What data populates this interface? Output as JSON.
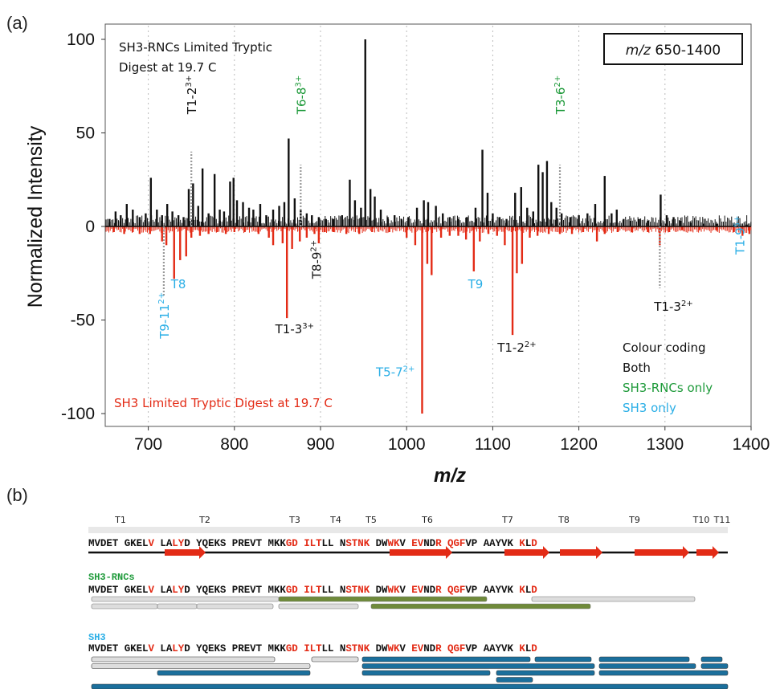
{
  "panel_a_label": "(a)",
  "panel_b_label": "(b)",
  "colors": {
    "top": "#111111",
    "bottom": "#e32b16",
    "green": "#1e9a3a",
    "blue": "#29aee6",
    "grid": "#bbbbbb",
    "bar_green": "#6f8a3a",
    "bar_blue": "#1b6f9c",
    "bar_grey": "#dddddd"
  },
  "chart_data": {
    "type": "line",
    "xlabel": "m/z",
    "ylabel": "Normalized Intensity",
    "xlim": [
      650,
      1400
    ],
    "ylim": [
      -105,
      105
    ],
    "xticks": [
      700,
      800,
      900,
      1000,
      1100,
      1200,
      1300,
      1400
    ],
    "yticks": [
      -100,
      -50,
      0,
      50,
      100
    ],
    "range_box": {
      "mz": "m/z",
      "rest": " 650-1400"
    },
    "top_title": [
      "SH3-RNCs Limited Tryptic",
      "Digest at 19.7 C"
    ],
    "bottom_title": "SH3 Limited Tryptic Digest at 19.7 C",
    "legend": {
      "title": "Colour coding",
      "items": [
        {
          "label": "Both",
          "color": "#111111"
        },
        {
          "label": "SH3-RNCs only",
          "color": "#1e9a3a"
        },
        {
          "label": "SH3 only",
          "color": "#29aee6"
        }
      ]
    },
    "series": [
      {
        "name": "SH3-RNCs",
        "color": "#111111",
        "peaks": [
          [
            655,
            4
          ],
          [
            662,
            8
          ],
          [
            668,
            6
          ],
          [
            675,
            12
          ],
          [
            682,
            9
          ],
          [
            690,
            5
          ],
          [
            697,
            7
          ],
          [
            703,
            26
          ],
          [
            710,
            9
          ],
          [
            716,
            6
          ],
          [
            722,
            12
          ],
          [
            728,
            8
          ],
          [
            735,
            6
          ],
          [
            741,
            5
          ],
          [
            747,
            20
          ],
          [
            752,
            23
          ],
          [
            758,
            11
          ],
          [
            763,
            31
          ],
          [
            770,
            7
          ],
          [
            777,
            28
          ],
          [
            783,
            9
          ],
          [
            788,
            8
          ],
          [
            795,
            24
          ],
          [
            799,
            26
          ],
          [
            803,
            14
          ],
          [
            810,
            13
          ],
          [
            817,
            10
          ],
          [
            822,
            9
          ],
          [
            830,
            12
          ],
          [
            837,
            6
          ],
          [
            845,
            9
          ],
          [
            852,
            11
          ],
          [
            858,
            13
          ],
          [
            863,
            47
          ],
          [
            870,
            15
          ],
          [
            877,
            9
          ],
          [
            884,
            7
          ],
          [
            890,
            6
          ],
          [
            898,
            5
          ],
          [
            906,
            4
          ],
          [
            915,
            4
          ],
          [
            925,
            6
          ],
          [
            934,
            25
          ],
          [
            940,
            14
          ],
          [
            947,
            10
          ],
          [
            952,
            100
          ],
          [
            958,
            20
          ],
          [
            963,
            16
          ],
          [
            970,
            9
          ],
          [
            978,
            5
          ],
          [
            986,
            6
          ],
          [
            994,
            4
          ],
          [
            1002,
            5
          ],
          [
            1012,
            10
          ],
          [
            1020,
            14
          ],
          [
            1025,
            13
          ],
          [
            1034,
            11
          ],
          [
            1042,
            7
          ],
          [
            1050,
            5
          ],
          [
            1060,
            4
          ],
          [
            1070,
            5
          ],
          [
            1080,
            10
          ],
          [
            1088,
            41
          ],
          [
            1094,
            18
          ],
          [
            1100,
            7
          ],
          [
            1108,
            5
          ],
          [
            1116,
            4
          ],
          [
            1126,
            18
          ],
          [
            1133,
            21
          ],
          [
            1140,
            10
          ],
          [
            1147,
            8
          ],
          [
            1153,
            33
          ],
          [
            1158,
            29
          ],
          [
            1163,
            35
          ],
          [
            1168,
            13
          ],
          [
            1174,
            10
          ],
          [
            1180,
            7
          ],
          [
            1190,
            5
          ],
          [
            1200,
            6
          ],
          [
            1210,
            7
          ],
          [
            1219,
            12
          ],
          [
            1230,
            27
          ],
          [
            1238,
            7
          ],
          [
            1244,
            9
          ],
          [
            1252,
            4
          ],
          [
            1260,
            3
          ],
          [
            1270,
            4
          ],
          [
            1280,
            3
          ],
          [
            1295,
            17
          ],
          [
            1302,
            6
          ],
          [
            1310,
            5
          ],
          [
            1318,
            3
          ],
          [
            1330,
            2
          ],
          [
            1345,
            1.5
          ],
          [
            1360,
            1.5
          ],
          [
            1380,
            1
          ],
          [
            1395,
            1
          ]
        ],
        "labels": [
          {
            "text": "T1-2",
            "charge": "3+",
            "mz": 750,
            "color": "#111111",
            "at": 60
          },
          {
            "text": "T6-8",
            "charge": "3+",
            "mz": 877,
            "color": "#1e9a3a",
            "at": 60
          },
          {
            "text": "T3-6",
            "charge": "2+",
            "mz": 1178,
            "color": "#1e9a3a",
            "at": 60
          }
        ]
      },
      {
        "name": "SH3",
        "color": "#e32b16",
        "peaks": [
          [
            660,
            -3
          ],
          [
            672,
            -4
          ],
          [
            682,
            -3
          ],
          [
            690,
            -4
          ],
          [
            702,
            -4
          ],
          [
            716,
            -8
          ],
          [
            721,
            -10
          ],
          [
            730,
            -28
          ],
          [
            737,
            -18
          ],
          [
            744,
            -16
          ],
          [
            750,
            -6
          ],
          [
            760,
            -5
          ],
          [
            770,
            -4
          ],
          [
            780,
            -3
          ],
          [
            790,
            -4
          ],
          [
            800,
            -3
          ],
          [
            812,
            -3
          ],
          [
            828,
            -4
          ],
          [
            840,
            -6
          ],
          [
            845,
            -10
          ],
          [
            856,
            -9
          ],
          [
            861,
            -49
          ],
          [
            867,
            -12
          ],
          [
            876,
            -8
          ],
          [
            884,
            -6
          ],
          [
            893,
            -4
          ],
          [
            898,
            -9
          ],
          [
            905,
            -3
          ],
          [
            915,
            -3
          ],
          [
            930,
            -4
          ],
          [
            945,
            -4
          ],
          [
            960,
            -3
          ],
          [
            980,
            -3
          ],
          [
            1000,
            -6
          ],
          [
            1010,
            -10
          ],
          [
            1018,
            -100
          ],
          [
            1024,
            -20
          ],
          [
            1029,
            -26
          ],
          [
            1040,
            -6
          ],
          [
            1050,
            -5
          ],
          [
            1060,
            -5
          ],
          [
            1069,
            -7
          ],
          [
            1078,
            -24
          ],
          [
            1085,
            -8
          ],
          [
            1095,
            -4
          ],
          [
            1105,
            -5
          ],
          [
            1114,
            -10
          ],
          [
            1123,
            -58
          ],
          [
            1128,
            -25
          ],
          [
            1134,
            -20
          ],
          [
            1143,
            -6
          ],
          [
            1152,
            -5
          ],
          [
            1165,
            -4
          ],
          [
            1178,
            -4
          ],
          [
            1192,
            -4
          ],
          [
            1205,
            -3
          ],
          [
            1221,
            -8
          ],
          [
            1230,
            -4
          ],
          [
            1245,
            -3
          ],
          [
            1262,
            -3
          ],
          [
            1280,
            -3
          ],
          [
            1294,
            -10
          ],
          [
            1305,
            -3
          ],
          [
            1320,
            -2
          ],
          [
            1340,
            -2
          ],
          [
            1360,
            -2
          ],
          [
            1380,
            -3
          ],
          [
            1390,
            -5
          ],
          [
            1398,
            -4
          ]
        ],
        "labels": [
          {
            "text": "T8",
            "mz": 735,
            "color": "#29aee6",
            "at": -33
          },
          {
            "text": "T9-11",
            "charge": "2+",
            "mz": 718,
            "color": "#29aee6",
            "at": -60
          },
          {
            "text": "T1-3",
            "charge": "3+",
            "mz": 870,
            "color": "#111111",
            "at": -57
          },
          {
            "text": "T8-9",
            "charge": "2+",
            "mz": 895,
            "color": "#111111",
            "at": -28
          },
          {
            "text": "T5-7",
            "charge": "2+",
            "mz": 1000,
            "color": "#29aee6",
            "at": -80
          },
          {
            "text": "T9",
            "mz": 1080,
            "color": "#29aee6",
            "at": -33
          },
          {
            "text": "T1-2",
            "charge": "2+",
            "mz": 1128,
            "color": "#111111",
            "at": -67
          },
          {
            "text": "T1-3",
            "charge": "2+",
            "mz": 1310,
            "color": "#111111",
            "at": -45
          },
          {
            "text": "T1-9",
            "charge": "5+",
            "mz": 1392,
            "color": "#29aee6",
            "at": -15
          }
        ]
      }
    ],
    "dotted_guides": [
      {
        "mz": 750,
        "from": 0,
        "to": 40,
        "side": "top"
      },
      {
        "mz": 877,
        "from": 0,
        "to": 33,
        "side": "top"
      },
      {
        "mz": 1178,
        "from": 0,
        "to": 33,
        "side": "top"
      },
      {
        "mz": 718,
        "from": 0,
        "to": -37,
        "side": "bottom"
      },
      {
        "mz": 1294,
        "from": 0,
        "to": -33,
        "side": "bottom"
      }
    ]
  },
  "sequence_panel": {
    "segment_labels": [
      "T1",
      "T2",
      "T3",
      "T4",
      "T5",
      "T6",
      "T7",
      "T8",
      "T9",
      "T10",
      "T11"
    ],
    "tracks": [
      {
        "name": "",
        "sequence": "MVDET GKELV LALYD YQEKS PREVT MKKGD ILTLL NSTNK DWWKV EVNDR QGFVP AAYVK KLD"
      },
      {
        "name": "SH3-RNCs",
        "sequence": "MVDET GKELV LALYD YQEKS PREVT MKKGD ILTLL NSTNK DWWKV EVNDR QGFVP AAYVK KLD"
      },
      {
        "name": "SH3",
        "sequence": "MVDET GKELV LALYD YQEKS PREVT MKKGD ILTLL NSTNK DWWKV EVNDR QGFVP AAYVK KLD"
      }
    ]
  }
}
